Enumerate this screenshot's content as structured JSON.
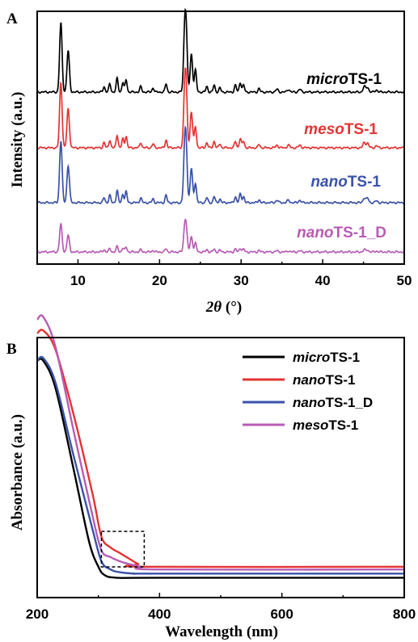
{
  "chart_data": [
    {
      "panel": "A",
      "type": "line",
      "xlabel_italic": "2θ",
      "xlabel_unit": " (°)",
      "ylabel": "Intensity (a.u.)",
      "xlim": [
        5,
        50
      ],
      "xticks": [
        10,
        20,
        30,
        40,
        50
      ],
      "peaks": [
        {
          "x": 7.9,
          "h": 1.0,
          "w": 0.15
        },
        {
          "x": 8.8,
          "h": 0.6,
          "w": 0.15
        },
        {
          "x": 13.2,
          "h": 0.08,
          "w": 0.12
        },
        {
          "x": 13.9,
          "h": 0.12,
          "w": 0.12
        },
        {
          "x": 14.8,
          "h": 0.2,
          "w": 0.12
        },
        {
          "x": 15.5,
          "h": 0.14,
          "w": 0.12
        },
        {
          "x": 15.9,
          "h": 0.18,
          "w": 0.12
        },
        {
          "x": 17.7,
          "h": 0.08,
          "w": 0.12
        },
        {
          "x": 19.2,
          "h": 0.06,
          "w": 0.12
        },
        {
          "x": 20.8,
          "h": 0.12,
          "w": 0.12
        },
        {
          "x": 23.1,
          "h": 0.95,
          "w": 0.15
        },
        {
          "x": 23.3,
          "h": 0.6,
          "w": 0.13
        },
        {
          "x": 23.9,
          "h": 0.55,
          "w": 0.15
        },
        {
          "x": 24.4,
          "h": 0.32,
          "w": 0.13
        },
        {
          "x": 25.8,
          "h": 0.08,
          "w": 0.12
        },
        {
          "x": 26.7,
          "h": 0.1,
          "w": 0.12
        },
        {
          "x": 27.4,
          "h": 0.06,
          "w": 0.12
        },
        {
          "x": 29.3,
          "h": 0.1,
          "w": 0.12
        },
        {
          "x": 29.9,
          "h": 0.14,
          "w": 0.13
        },
        {
          "x": 30.3,
          "h": 0.1,
          "w": 0.12
        },
        {
          "x": 32.2,
          "h": 0.05,
          "w": 0.12
        },
        {
          "x": 34.4,
          "h": 0.04,
          "w": 0.15
        },
        {
          "x": 35.8,
          "h": 0.04,
          "w": 0.15
        },
        {
          "x": 37.2,
          "h": 0.04,
          "w": 0.15
        },
        {
          "x": 45.1,
          "h": 0.08,
          "w": 0.15
        },
        {
          "x": 45.5,
          "h": 0.07,
          "w": 0.15
        },
        {
          "x": 46.6,
          "h": 0.03,
          "w": 0.15
        }
      ],
      "series": [
        {
          "name_italic": "micro",
          "name_rest": "TS-1",
          "color": "#000000",
          "scale": 1.0
        },
        {
          "name_italic": "meso",
          "name_rest": "TS-1",
          "color": "#e53333",
          "scale": 0.95
        },
        {
          "name_italic": "nano",
          "name_rest": "TS-1",
          "color": "#3a52a8",
          "scale": 0.9
        },
        {
          "name_italic": "nano",
          "name_rest": "TS-1_D",
          "color": "#b85cb3",
          "scale": 0.4
        }
      ]
    },
    {
      "panel": "B",
      "type": "line",
      "xlabel": "Wavelength (nm)",
      "ylabel": "Absorbance (a.u.)",
      "xlim": [
        200,
        800
      ],
      "xticks": [
        200,
        400,
        600,
        800
      ],
      "series": [
        {
          "name_italic": "micro",
          "name_rest": "TS-1",
          "color": "#000000",
          "x": [
            200,
            210,
            230,
            260,
            285,
            300,
            310,
            330,
            400,
            800
          ],
          "y": [
            0.78,
            0.78,
            0.68,
            0.38,
            0.12,
            0.03,
            0.0,
            -0.01,
            -0.01,
            -0.01
          ]
        },
        {
          "name_italic": "nano",
          "name_rest": "TS-1",
          "color": "#e53333",
          "x": [
            200,
            210,
            230,
            260,
            290,
            305,
            320,
            335,
            350,
            365,
            380,
            800
          ],
          "y": [
            0.88,
            0.89,
            0.82,
            0.58,
            0.3,
            0.14,
            0.1,
            0.08,
            0.06,
            0.04,
            0.03,
            0.03
          ]
        },
        {
          "name_italic": "nano",
          "name_rest": "TS-1_D",
          "color": "#3a52a8",
          "x": [
            200,
            210,
            230,
            260,
            290,
            305,
            320,
            335,
            360,
            400,
            800
          ],
          "y": [
            0.78,
            0.79,
            0.7,
            0.43,
            0.17,
            0.05,
            0.02,
            0.01,
            0.005,
            0.005,
            0.005
          ]
        },
        {
          "name_italic": "meso",
          "name_rest": "TS-1",
          "color": "#b85cb3",
          "x": [
            200,
            210,
            230,
            260,
            290,
            305,
            320,
            335,
            350,
            370,
            400,
            800
          ],
          "y": [
            0.93,
            0.94,
            0.83,
            0.52,
            0.22,
            0.09,
            0.065,
            0.05,
            0.04,
            0.03,
            0.02,
            0.02
          ]
        }
      ],
      "annotation": {
        "type": "dashed-box",
        "x_range": [
          305,
          375
        ]
      }
    }
  ]
}
